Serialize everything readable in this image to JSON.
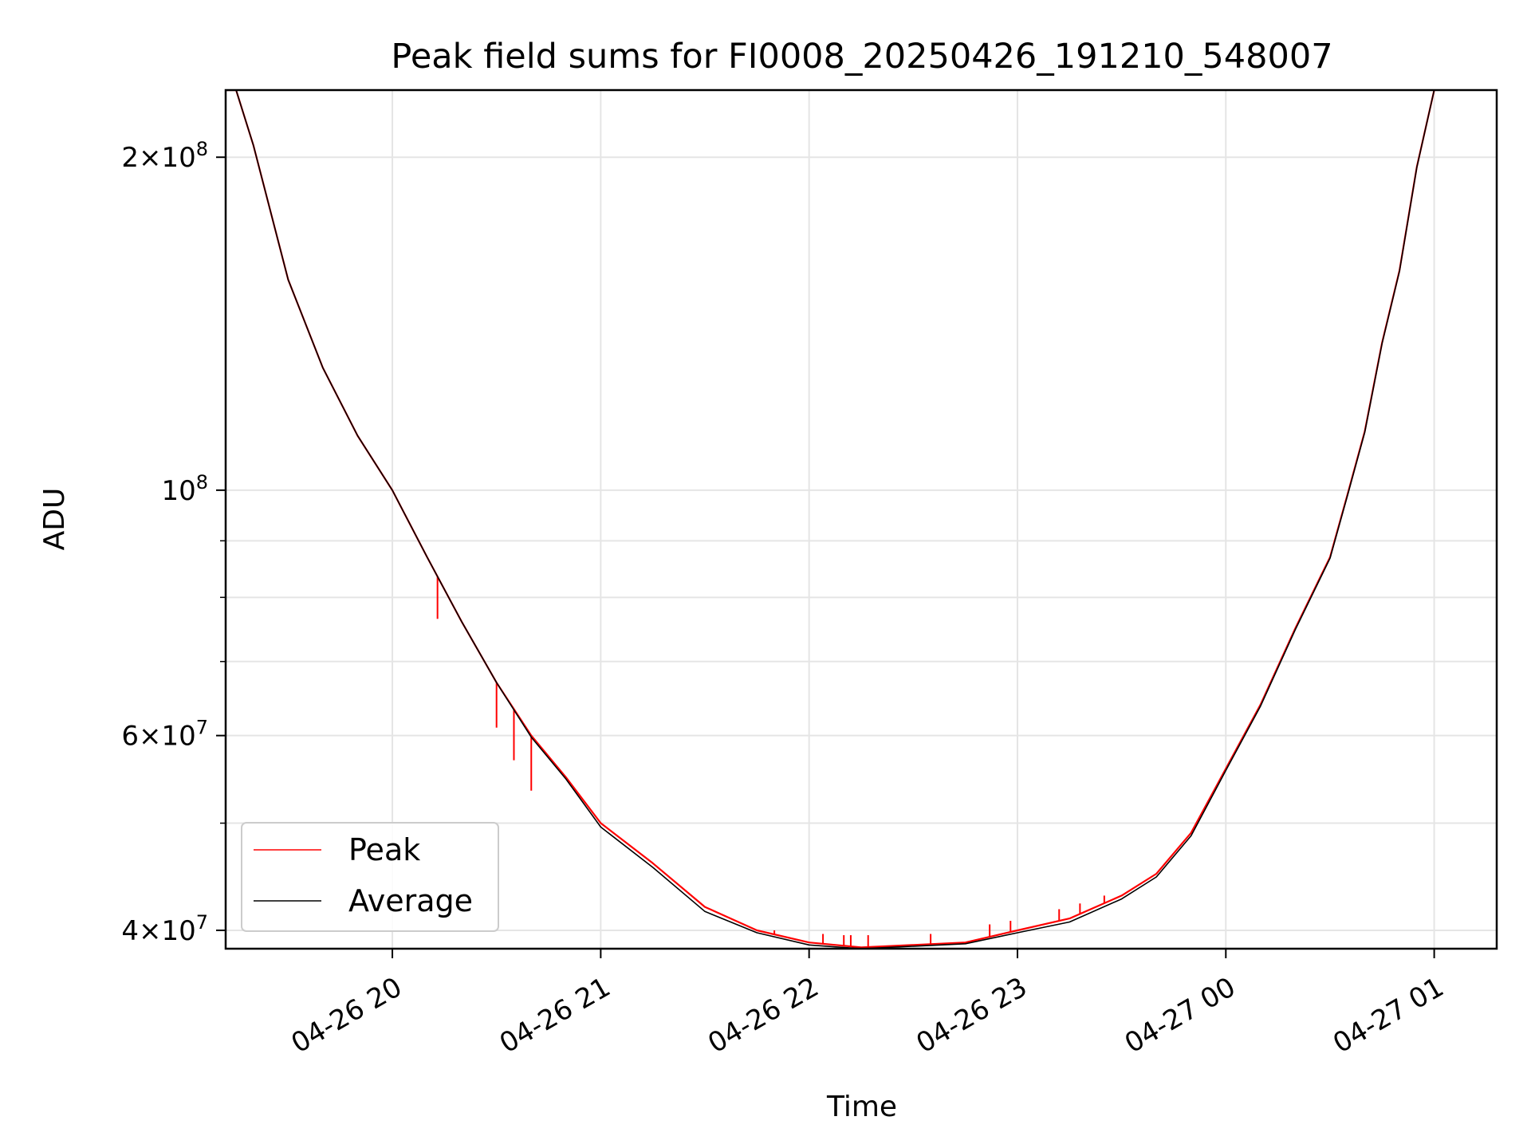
{
  "chart_data": {
    "type": "line",
    "title": "Peak field sums for FI0008_20250426_191210_548007",
    "xlabel": "Time",
    "ylabel": "ADU",
    "y_scale": "log",
    "xlim": [
      "2025-04-26 19:12",
      "2025-04-27 01:18"
    ],
    "ylim": [
      38500000,
      230000000
    ],
    "grid": true,
    "legend_position": "lower-left",
    "x_tick_labels": [
      "04-26 20",
      "04-26 21",
      "04-26 22",
      "04-26 23",
      "04-27 00",
      "04-27 01"
    ],
    "x_tick_values": [
      "2025-04-26 20:00",
      "2025-04-26 21:00",
      "2025-04-26 22:00",
      "2025-04-26 23:00",
      "2025-04-27 00:00",
      "2025-04-27 01:00"
    ],
    "y_tick_labels": [
      {
        "coef": "4",
        "exp": "7",
        "value": 40000000
      },
      {
        "coef": "6",
        "exp": "7",
        "value": 60000000
      },
      {
        "coef": "",
        "exp": "8",
        "value": 100000000
      },
      {
        "coef": "2",
        "exp": "8",
        "value": 200000000
      }
    ],
    "y_minor_ticks": [
      50000000,
      70000000,
      80000000,
      90000000
    ],
    "x": [
      "2025-04-26 19:12",
      "2025-04-26 19:15",
      "2025-04-26 19:20",
      "2025-04-26 19:30",
      "2025-04-26 19:40",
      "2025-04-26 19:50",
      "2025-04-26 20:00",
      "2025-04-26 20:10",
      "2025-04-26 20:20",
      "2025-04-26 20:30",
      "2025-04-26 20:40",
      "2025-04-26 20:50",
      "2025-04-26 21:00",
      "2025-04-26 21:15",
      "2025-04-26 21:30",
      "2025-04-26 21:45",
      "2025-04-26 22:00",
      "2025-04-26 22:15",
      "2025-04-26 22:30",
      "2025-04-26 22:45",
      "2025-04-26 23:00",
      "2025-04-26 23:15",
      "2025-04-26 23:30",
      "2025-04-26 23:40",
      "2025-04-26 23:50",
      "2025-04-27 00:00",
      "2025-04-27 00:10",
      "2025-04-27 00:20",
      "2025-04-27 00:30",
      "2025-04-27 00:35",
      "2025-04-27 00:40",
      "2025-04-27 00:45",
      "2025-04-27 00:50",
      "2025-04-27 00:55",
      "2025-04-27 01:00"
    ],
    "series": [
      {
        "name": "Peak",
        "color": "#ff0000",
        "values": [
          230000000,
          230000000,
          205000000,
          155000000,
          129000000,
          112000000,
          100000000,
          87000000,
          76000000,
          67000000,
          60000000,
          55000000,
          50000000,
          46000000,
          42000000,
          40000000,
          39000000,
          38600000,
          38800000,
          39000000,
          40000000,
          41000000,
          43000000,
          45000000,
          49000000,
          56000000,
          64000000,
          75000000,
          87000000,
          99000000,
          113000000,
          136000000,
          158000000,
          196000000,
          230000000
        ]
      },
      {
        "name": "Average",
        "color": "#000000",
        "values": [
          230000000,
          230000000,
          205000000,
          155000000,
          129000000,
          112000000,
          100000000,
          87000000,
          76000000,
          67000000,
          59800000,
          54800000,
          49600000,
          45600000,
          41600000,
          39800000,
          38800000,
          38500000,
          38700000,
          38900000,
          39800000,
          40700000,
          42700000,
          44700000,
          48700000,
          55800000,
          63800000,
          74800000,
          86800000,
          98800000,
          112800000,
          135800000,
          157800000,
          195800000,
          230000000
        ]
      }
    ],
    "peak_spikes": [
      {
        "x": "2025-04-26 20:13",
        "y": 76500000
      },
      {
        "x": "2025-04-26 20:30",
        "y": 61000000
      },
      {
        "x": "2025-04-26 20:35",
        "y": 57000000
      },
      {
        "x": "2025-04-26 20:40",
        "y": 53500000
      },
      {
        "x": "2025-04-26 21:50",
        "y": 40000000
      },
      {
        "x": "2025-04-26 22:04",
        "y": 39700000
      },
      {
        "x": "2025-04-26 22:10",
        "y": 39600000
      },
      {
        "x": "2025-04-26 22:12",
        "y": 39600000
      },
      {
        "x": "2025-04-26 22:17",
        "y": 39600000
      },
      {
        "x": "2025-04-26 22:35",
        "y": 39700000
      },
      {
        "x": "2025-04-26 22:52",
        "y": 40500000
      },
      {
        "x": "2025-04-26 22:58",
        "y": 40800000
      },
      {
        "x": "2025-04-26 23:12",
        "y": 41800000
      },
      {
        "x": "2025-04-26 23:18",
        "y": 42300000
      },
      {
        "x": "2025-04-26 23:25",
        "y": 43000000
      }
    ]
  }
}
